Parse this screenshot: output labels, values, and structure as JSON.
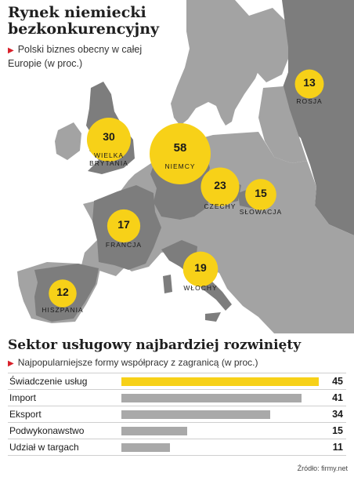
{
  "chart_data": [
    {
      "type": "bubble-map",
      "title": "Rynek niemiecki bezkonkurencyjny",
      "subtitle": "Polski biznes obecny w całej Europie (w proc.)",
      "points": [
        {
          "value": 58,
          "label": "NIEMCY",
          "color": "#f7d118"
        },
        {
          "value": 30,
          "label": "WIELKA BRYTANIA",
          "label_lines": [
            "WIELKA",
            "BRYTANIA"
          ],
          "color": "#f7d118"
        },
        {
          "value": 23,
          "label": "CZECHY",
          "color": "#f7d118"
        },
        {
          "value": 19,
          "label": "WŁOCHY",
          "color": "#f7d118"
        },
        {
          "value": 17,
          "label": "FRANCJA",
          "color": "#f7d118"
        },
        {
          "value": 15,
          "label": "SŁOWACJA",
          "color": "#f7d118"
        },
        {
          "value": 13,
          "label": "ROSJA",
          "color": "#f7d118"
        },
        {
          "value": 12,
          "label": "HISZPANIA",
          "color": "#f7d118"
        }
      ]
    },
    {
      "type": "bar",
      "orientation": "horizontal",
      "title": "Sektor usługowy najbardziej rozwinięty",
      "subtitle": "Najpopularniejsze formy współpracy z zagranicą (w proc.)",
      "categories": [
        "Świadczenie usług",
        "Import",
        "Eksport",
        "Podwykonawstwo",
        "Udział w targach"
      ],
      "values": [
        45,
        41,
        34,
        15,
        11
      ],
      "highlight_color": "#f7d118",
      "bar_color": "#a9a9a9",
      "xlim": [
        0,
        45
      ]
    }
  ],
  "source": "Źródło: firmy.net",
  "colors": {
    "land_highlight": "#7d7d7d",
    "land": "#a3a3a3",
    "sea": "#ffffff",
    "bubble": "#f7d118"
  }
}
